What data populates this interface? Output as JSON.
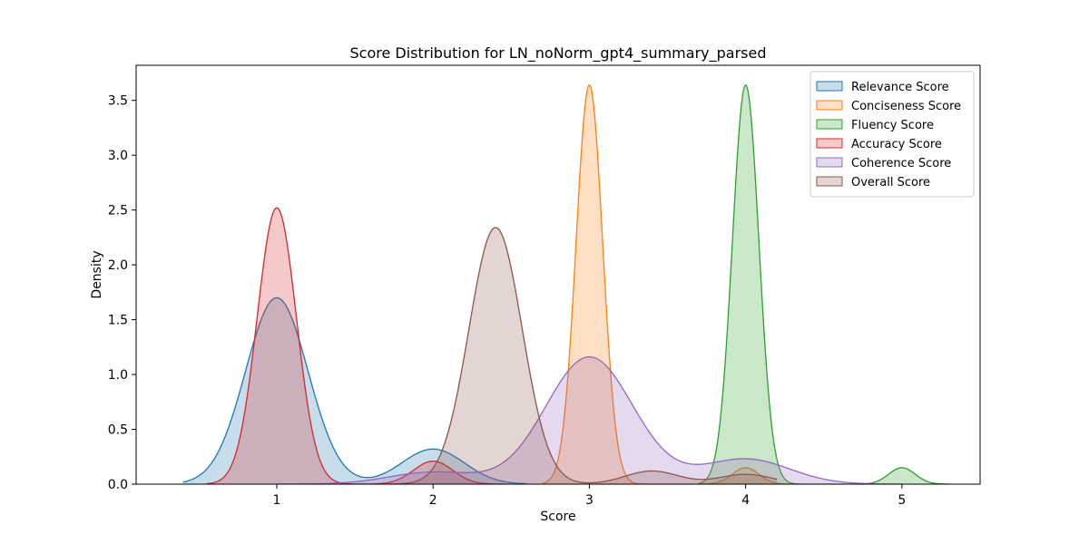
{
  "chart_data": {
    "type": "area",
    "title": "Score Distribution for LN_noNorm_gpt4_summary_parsed",
    "xlabel": "Score",
    "ylabel": "Density",
    "xlim": [
      0.1,
      5.5
    ],
    "ylim": [
      0,
      3.82
    ],
    "xticks": [
      1,
      2,
      3,
      4,
      5
    ],
    "yticks": [
      0.0,
      0.5,
      1.0,
      1.5,
      2.0,
      2.5,
      3.0,
      3.5
    ],
    "legend_position": "top-right",
    "grid": false,
    "series": [
      {
        "name": "Relevance Score",
        "color": "#1f77b4",
        "x_range": [
          0.4,
          2.6
        ],
        "components": [
          {
            "mean": 1.0,
            "sd": 0.2,
            "amp": 1.7
          },
          {
            "mean": 2.0,
            "sd": 0.2,
            "amp": 0.32
          }
        ]
      },
      {
        "name": "Conciseness Score",
        "color": "#ff7f0e",
        "x_range": [
          2.7,
          4.3
        ],
        "components": [
          {
            "mean": 3.0,
            "sd": 0.085,
            "amp": 3.64
          },
          {
            "mean": 4.0,
            "sd": 0.085,
            "amp": 0.15
          }
        ]
      },
      {
        "name": "Fluency Score",
        "color": "#2ca02c",
        "x_range": [
          3.7,
          5.3
        ],
        "components": [
          {
            "mean": 4.0,
            "sd": 0.085,
            "amp": 3.64
          },
          {
            "mean": 5.0,
            "sd": 0.085,
            "amp": 0.15
          }
        ]
      },
      {
        "name": "Accuracy Score",
        "color": "#d62728",
        "x_range": [
          0.55,
          2.45
        ],
        "components": [
          {
            "mean": 1.0,
            "sd": 0.125,
            "amp": 2.52
          },
          {
            "mean": 2.0,
            "sd": 0.125,
            "amp": 0.21
          }
        ]
      },
      {
        "name": "Coherence Score",
        "color": "#9467bd",
        "x_range": [
          1.0,
          5.0
        ],
        "components": [
          {
            "mean": 2.0,
            "sd": 0.28,
            "amp": 0.11
          },
          {
            "mean": 3.0,
            "sd": 0.28,
            "amp": 1.16
          },
          {
            "mean": 4.0,
            "sd": 0.28,
            "amp": 0.23
          }
        ]
      },
      {
        "name": "Overall Score",
        "color": "#8c564b",
        "x_range": [
          1.7,
          4.2
        ],
        "components": [
          {
            "mean": 2.4,
            "sd": 0.17,
            "amp": 2.34
          },
          {
            "mean": 3.4,
            "sd": 0.17,
            "amp": 0.12
          },
          {
            "mean": 4.0,
            "sd": 0.17,
            "amp": 0.09
          }
        ]
      }
    ]
  }
}
